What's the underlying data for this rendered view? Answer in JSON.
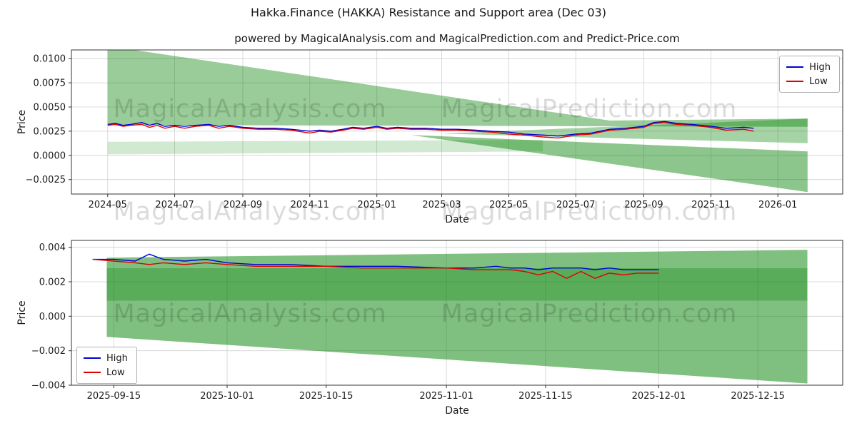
{
  "title": "Hakka.Finance (HAKKA) Resistance and Support area (Dec 03)",
  "subtitle": "powered by MagicalAnalysis.com and MagicalPrediction.com and Predict-Price.com",
  "watermark": {
    "left": "MagicalAnalysis.com",
    "right": "MagicalPrediction.com"
  },
  "colors": {
    "high": "#0000d4",
    "low": "#e00000",
    "band": "#008000",
    "grid": "#d0d0d0",
    "frame": "#333333",
    "text": "#1a1a1a"
  },
  "chart_data": [
    {
      "type": "line",
      "name": "full-history",
      "xlabel": "Date",
      "ylabel": "Price",
      "grid": true,
      "xlim": [
        "2024-03-29",
        "2026-03-01"
      ],
      "ylim": [
        -0.004,
        0.0109
      ],
      "xticks": [
        {
          "v": "2024-05-01",
          "label": "2024-05"
        },
        {
          "v": "2024-07-01",
          "label": "2024-07"
        },
        {
          "v": "2024-09-01",
          "label": "2024-09"
        },
        {
          "v": "2024-11-01",
          "label": "2024-11"
        },
        {
          "v": "2025-01-01",
          "label": "2025-01"
        },
        {
          "v": "2025-03-01",
          "label": "2025-03"
        },
        {
          "v": "2025-05-01",
          "label": "2025-05"
        },
        {
          "v": "2025-07-01",
          "label": "2025-07"
        },
        {
          "v": "2025-09-01",
          "label": "2025-09"
        },
        {
          "v": "2025-11-01",
          "label": "2025-11"
        },
        {
          "v": "2026-01-01",
          "label": "2026-01"
        }
      ],
      "yticks": [
        {
          "v": -0.0025,
          "label": "−0.0025"
        },
        {
          "v": 0.0,
          "label": "0.0000"
        },
        {
          "v": 0.0025,
          "label": "0.0025"
        },
        {
          "v": 0.005,
          "label": "0.0050"
        },
        {
          "v": 0.0075,
          "label": "0.0075"
        },
        {
          "v": 0.01,
          "label": "0.0100"
        }
      ],
      "legend": {
        "position": "top-right",
        "entries": [
          {
            "label": "High",
            "color_key": "high"
          },
          {
            "label": "Low",
            "color_key": "low"
          }
        ]
      },
      "bands": [
        {
          "opacity": 0.4,
          "points": [
            [
              "2024-05-01",
              0.0113
            ],
            [
              "2025-08-01",
              0.0036
            ],
            [
              "2026-01-28",
              0.0038
            ],
            [
              "2026-01-28",
              0.00295
            ],
            [
              "2024-05-01",
              0.00315
            ]
          ]
        },
        {
          "opacity": 0.35,
          "points": [
            [
              "2025-03-01",
              0.00225
            ],
            [
              "2026-01-28",
              0.0038
            ],
            [
              "2026-01-28",
              0.00125
            ]
          ]
        },
        {
          "opacity": 0.45,
          "points": [
            [
              "2025-02-01",
              0.0021
            ],
            [
              "2026-01-28",
              0.0004
            ],
            [
              "2026-01-28",
              -0.0038
            ]
          ]
        },
        {
          "opacity": 0.18,
          "points": [
            [
              "2024-05-01",
              0.0014
            ],
            [
              "2025-06-01",
              0.0016
            ],
            [
              "2025-06-01",
              0.0004
            ],
            [
              "2024-05-01",
              0.0001
            ]
          ]
        }
      ],
      "series": [
        {
          "name": "High",
          "color_key": "high",
          "x": [
            "2024-05-01",
            "2024-05-08",
            "2024-05-15",
            "2024-05-22",
            "2024-06-01",
            "2024-06-08",
            "2024-06-15",
            "2024-06-22",
            "2024-07-01",
            "2024-07-10",
            "2024-07-20",
            "2024-08-01",
            "2024-08-10",
            "2024-08-20",
            "2024-09-01",
            "2024-09-15",
            "2024-10-01",
            "2024-10-15",
            "2024-11-01",
            "2024-11-10",
            "2024-11-20",
            "2024-12-01",
            "2024-12-10",
            "2024-12-20",
            "2025-01-01",
            "2025-01-10",
            "2025-01-20",
            "2025-02-01",
            "2025-02-15",
            "2025-03-01",
            "2025-03-15",
            "2025-04-01",
            "2025-04-15",
            "2025-05-01",
            "2025-05-15",
            "2025-06-01",
            "2025-06-15",
            "2025-07-01",
            "2025-07-15",
            "2025-08-01",
            "2025-08-15",
            "2025-09-01",
            "2025-09-10",
            "2025-09-20",
            "2025-10-01",
            "2025-10-15",
            "2025-11-01",
            "2025-11-15",
            "2025-12-01",
            "2025-12-10"
          ],
          "y": [
            0.0032,
            0.0033,
            0.0031,
            0.0032,
            0.0034,
            0.0031,
            0.0033,
            0.003,
            0.0031,
            0.003,
            0.0031,
            0.0032,
            0.003,
            0.0031,
            0.0029,
            0.0028,
            0.0028,
            0.0027,
            0.0025,
            0.0026,
            0.0025,
            0.0027,
            0.0029,
            0.0028,
            0.003,
            0.0028,
            0.0029,
            0.0028,
            0.0028,
            0.0027,
            0.0027,
            0.0026,
            0.0025,
            0.0024,
            0.0022,
            0.0021,
            0.002,
            0.0022,
            0.0023,
            0.0027,
            0.0028,
            0.003,
            0.0034,
            0.0035,
            0.0033,
            0.0032,
            0.003,
            0.0028,
            0.0029,
            0.0028
          ]
        },
        {
          "name": "Low",
          "color_key": "low",
          "x": [
            "2024-05-01",
            "2024-05-08",
            "2024-05-15",
            "2024-05-22",
            "2024-06-01",
            "2024-06-08",
            "2024-06-15",
            "2024-06-22",
            "2024-07-01",
            "2024-07-10",
            "2024-07-20",
            "2024-08-01",
            "2024-08-10",
            "2024-08-20",
            "2024-09-01",
            "2024-09-15",
            "2024-10-01",
            "2024-10-15",
            "2024-11-01",
            "2024-11-10",
            "2024-11-20",
            "2024-12-01",
            "2024-12-10",
            "2024-12-20",
            "2025-01-01",
            "2025-01-10",
            "2025-01-20",
            "2025-02-01",
            "2025-02-15",
            "2025-03-01",
            "2025-03-15",
            "2025-04-01",
            "2025-04-15",
            "2025-05-01",
            "2025-05-15",
            "2025-06-01",
            "2025-06-15",
            "2025-07-01",
            "2025-07-15",
            "2025-08-01",
            "2025-08-15",
            "2025-09-01",
            "2025-09-10",
            "2025-09-20",
            "2025-10-01",
            "2025-10-15",
            "2025-11-01",
            "2025-11-15",
            "2025-12-01",
            "2025-12-10"
          ],
          "y": [
            0.0031,
            0.0032,
            0.003,
            0.0031,
            0.0032,
            0.0029,
            0.0031,
            0.0028,
            0.003,
            0.0028,
            0.003,
            0.0031,
            0.0028,
            0.003,
            0.0028,
            0.0027,
            0.0027,
            0.0026,
            0.0023,
            0.0025,
            0.0024,
            0.0026,
            0.0028,
            0.0027,
            0.0029,
            0.0027,
            0.0028,
            0.0027,
            0.0027,
            0.0026,
            0.0026,
            0.0025,
            0.0024,
            0.0022,
            0.0021,
            0.0019,
            0.0018,
            0.0021,
            0.0022,
            0.0026,
            0.0027,
            0.0029,
            0.0033,
            0.0034,
            0.0032,
            0.0031,
            0.0029,
            0.0026,
            0.0027,
            0.0025
          ]
        }
      ]
    },
    {
      "type": "line",
      "name": "recent-zoom",
      "xlabel": "Date",
      "ylabel": "Price",
      "grid": true,
      "xlim": [
        "2025-09-09",
        "2025-12-27"
      ],
      "ylim": [
        -0.004,
        0.0044
      ],
      "xticks": [
        {
          "v": "2025-09-15",
          "label": "2025-09-15"
        },
        {
          "v": "2025-10-01",
          "label": "2025-10-01"
        },
        {
          "v": "2025-10-15",
          "label": "2025-10-15"
        },
        {
          "v": "2025-11-01",
          "label": "2025-11-01"
        },
        {
          "v": "2025-11-15",
          "label": "2025-11-15"
        },
        {
          "v": "2025-12-01",
          "label": "2025-12-01"
        },
        {
          "v": "2025-12-15",
          "label": "2025-12-15"
        }
      ],
      "yticks": [
        {
          "v": -0.004,
          "label": "−0.004"
        },
        {
          "v": -0.002,
          "label": "−0.002"
        },
        {
          "v": 0.0,
          "label": "0.000"
        },
        {
          "v": 0.002,
          "label": "0.002"
        },
        {
          "v": 0.004,
          "label": "0.004"
        }
      ],
      "legend": {
        "position": "bottom-left",
        "entries": [
          {
            "label": "High",
            "color_key": "high"
          },
          {
            "label": "Low",
            "color_key": "low"
          }
        ]
      },
      "bands": [
        {
          "opacity": 0.5,
          "points": [
            [
              "2025-09-14",
              0.0034
            ],
            [
              "2025-12-22",
              0.00385
            ],
            [
              "2025-12-22",
              0.0028
            ],
            [
              "2025-09-14",
              0.0028
            ]
          ]
        },
        {
          "opacity": 0.65,
          "points": [
            [
              "2025-09-14",
              0.0028
            ],
            [
              "2025-12-22",
              0.0028
            ],
            [
              "2025-12-22",
              0.0009
            ],
            [
              "2025-09-14",
              0.0009
            ]
          ]
        },
        {
          "opacity": 0.5,
          "points": [
            [
              "2025-09-14",
              0.0009
            ],
            [
              "2025-12-22",
              0.0009
            ],
            [
              "2025-12-22",
              -0.0039
            ],
            [
              "2025-09-14",
              -0.0012
            ]
          ]
        }
      ],
      "series": [
        {
          "name": "High",
          "color_key": "high",
          "x": [
            "2025-09-12",
            "2025-09-15",
            "2025-09-18",
            "2025-09-20",
            "2025-09-22",
            "2025-09-25",
            "2025-09-28",
            "2025-10-01",
            "2025-10-05",
            "2025-10-10",
            "2025-10-15",
            "2025-10-20",
            "2025-10-25",
            "2025-11-01",
            "2025-11-05",
            "2025-11-08",
            "2025-11-10",
            "2025-11-12",
            "2025-11-14",
            "2025-11-16",
            "2025-11-18",
            "2025-11-20",
            "2025-11-22",
            "2025-11-24",
            "2025-11-26",
            "2025-11-28",
            "2025-12-01"
          ],
          "y": [
            0.0033,
            0.0033,
            0.0032,
            0.0036,
            0.0033,
            0.0032,
            0.0033,
            0.0031,
            0.003,
            0.003,
            0.0029,
            0.0029,
            0.0029,
            0.0028,
            0.0028,
            0.0029,
            0.0028,
            0.0028,
            0.0027,
            0.0028,
            0.0028,
            0.0028,
            0.0027,
            0.0028,
            0.0027,
            0.0027,
            0.0027
          ]
        },
        {
          "name": "Low",
          "color_key": "low",
          "x": [
            "2025-09-12",
            "2025-09-15",
            "2025-09-18",
            "2025-09-20",
            "2025-09-22",
            "2025-09-25",
            "2025-09-28",
            "2025-10-01",
            "2025-10-05",
            "2025-10-10",
            "2025-10-15",
            "2025-10-20",
            "2025-10-25",
            "2025-11-01",
            "2025-11-05",
            "2025-11-08",
            "2025-11-10",
            "2025-11-12",
            "2025-11-14",
            "2025-11-16",
            "2025-11-18",
            "2025-11-20",
            "2025-11-22",
            "2025-11-24",
            "2025-11-26",
            "2025-11-28",
            "2025-12-01"
          ],
          "y": [
            0.0033,
            0.0032,
            0.0031,
            0.003,
            0.0031,
            0.003,
            0.0031,
            0.003,
            0.0029,
            0.0029,
            0.0029,
            0.0028,
            0.0028,
            0.0028,
            0.0027,
            0.0027,
            0.0027,
            0.0026,
            0.0024,
            0.0026,
            0.0022,
            0.0026,
            0.0022,
            0.0025,
            0.0024,
            0.0025,
            0.0025
          ]
        }
      ]
    }
  ]
}
